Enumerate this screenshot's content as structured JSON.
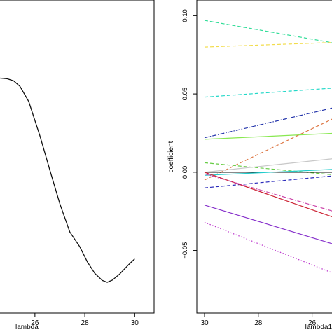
{
  "chart_data": [
    {
      "type": "line",
      "title": "",
      "xlabel": "lambda",
      "ylabel": "",
      "xlim": [
        24.6,
        30.3
      ],
      "ylim": [
        0,
        1
      ],
      "x_ticks": [
        26,
        28,
        30
      ],
      "x_tick_labels": [
        "26",
        "28",
        "30"
      ],
      "y_ticks": [],
      "grid": false,
      "series": [
        {
          "color": "#111111",
          "x": [
            24.6,
            24.9,
            25.15,
            25.4,
            25.75,
            26.2,
            26.6,
            27.0,
            27.4,
            27.8,
            28.1,
            28.4,
            28.7,
            28.9,
            29.1,
            29.4,
            29.75,
            30.0
          ],
          "y": [
            0.865,
            0.862,
            0.853,
            0.83,
            0.766,
            0.62,
            0.475,
            0.332,
            0.213,
            0.15,
            0.087,
            0.038,
            0.008,
            0.0,
            0.009,
            0.035,
            0.074,
            0.099
          ]
        }
      ]
    },
    {
      "type": "line",
      "title": "",
      "xlabel": "lambda1",
      "ylabel": "coefficient",
      "xlim": [
        30,
        25
      ],
      "ylim": [
        -0.09,
        0.11
      ],
      "x_ticks": [
        30,
        28,
        26
      ],
      "x_tick_labels": [
        "30",
        "28",
        "26"
      ],
      "y_ticks": [
        -0.05,
        0.0,
        0.05,
        0.1
      ],
      "y_tick_labels": [
        "−0.05",
        "0.00",
        "0.05",
        "0.10"
      ],
      "grid": false,
      "series": [
        {
          "color": "#33dd99",
          "dash": "dashed",
          "x": [
            30,
            25
          ],
          "y": [
            0.097,
            0.082
          ]
        },
        {
          "color": "#f2dc4a",
          "dash": "dashed",
          "x": [
            30,
            25
          ],
          "y": [
            0.08,
            0.083
          ]
        },
        {
          "color": "#22d8c8",
          "dash": "dashed",
          "x": [
            30,
            25
          ],
          "y": [
            0.048,
            0.054
          ]
        },
        {
          "color": "#2233aa",
          "dash": "dashdot",
          "x": [
            30,
            25
          ],
          "y": [
            0.022,
            0.042
          ]
        },
        {
          "color": "#88e850",
          "dash": "solid",
          "x": [
            30,
            25
          ],
          "y": [
            0.021,
            0.025
          ]
        },
        {
          "color": "#dd7744",
          "dash": "dashed",
          "x": [
            30,
            25
          ],
          "y": [
            -0.005,
            0.036
          ]
        },
        {
          "color": "#66cc44",
          "dash": "dashed",
          "x": [
            30,
            25
          ],
          "y": [
            0.006,
            -0.002
          ]
        },
        {
          "color": "#111111",
          "dash": "solid",
          "x": [
            30,
            25
          ],
          "y": [
            0.0,
            0.0
          ]
        },
        {
          "color": "#c8c8c8",
          "dash": "solid",
          "x": [
            30,
            25
          ],
          "y": [
            0.0,
            0.009
          ]
        },
        {
          "color": "#22cccc",
          "dash": "solid",
          "x": [
            30,
            25
          ],
          "y": [
            -0.002,
            0.002
          ]
        },
        {
          "color": "#2c2cbb",
          "dash": "dashed",
          "x": [
            30,
            25
          ],
          "y": [
            -0.01,
            -0.002
          ]
        },
        {
          "color": "#cc2233",
          "dash": "solid",
          "x": [
            30,
            25
          ],
          "y": [
            0.0,
            -0.03
          ]
        },
        {
          "color": "#cc44aa",
          "dash": "dashdot",
          "x": [
            30,
            25
          ],
          "y": [
            -0.001,
            -0.026
          ]
        },
        {
          "color": "#8833cc",
          "dash": "solid",
          "x": [
            30,
            25
          ],
          "y": [
            -0.021,
            -0.047
          ]
        },
        {
          "color": "#bb33cc",
          "dash": "dotted",
          "x": [
            30,
            25
          ],
          "y": [
            -0.032,
            -0.066
          ]
        }
      ]
    }
  ]
}
